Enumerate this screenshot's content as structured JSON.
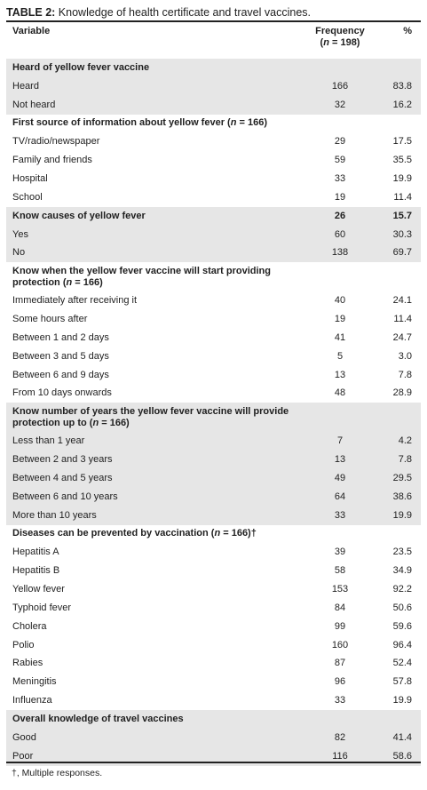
{
  "title": {
    "prefix": "TABLE 2:",
    "text": " Knowledge of health certificate and travel vaccines."
  },
  "header": {
    "variable": "Variable",
    "frequency": "Frequency",
    "frequency_n": "(n = 198)",
    "percent": "%"
  },
  "rows": [
    {
      "label": "Heard of yellow fever vaccine",
      "freq": "",
      "pct": "",
      "section": true,
      "shade": true
    },
    {
      "label": "Heard",
      "freq": "166",
      "pct": "83.8",
      "shade": true
    },
    {
      "label": "Not heard",
      "freq": "32",
      "pct": "16.2",
      "shade": true
    },
    {
      "label": "First source of information about yellow fever (n = 166)",
      "freq": "",
      "pct": "",
      "section": true
    },
    {
      "label": "TV/radio/newspaper",
      "freq": "29",
      "pct": "17.5"
    },
    {
      "label": "Family and friends",
      "freq": "59",
      "pct": "35.5"
    },
    {
      "label": "Hospital",
      "freq": "33",
      "pct": "19.9"
    },
    {
      "label": "School",
      "freq": "19",
      "pct": "11.4"
    },
    {
      "label": "Know causes of yellow fever",
      "freq": "26",
      "pct": "15.7",
      "section": true,
      "shade": true
    },
    {
      "label": "Yes",
      "freq": "60",
      "pct": "30.3",
      "shade": true
    },
    {
      "label": "No",
      "freq": "138",
      "pct": "69.7",
      "shade": true
    },
    {
      "label": "Know when the yellow fever vaccine will start providing protection (n = 166)",
      "freq": "",
      "pct": "",
      "section": true,
      "tall": true
    },
    {
      "label": "Immediately after receiving it",
      "freq": "40",
      "pct": "24.1"
    },
    {
      "label": "Some hours after",
      "freq": "19",
      "pct": "11.4"
    },
    {
      "label": "Between 1 and 2 days",
      "freq": "41",
      "pct": "24.7"
    },
    {
      "label": "Between 3 and 5 days",
      "freq": "5",
      "pct": "3.0"
    },
    {
      "label": "Between 6 and 9 days",
      "freq": "13",
      "pct": "7.8"
    },
    {
      "label": "From 10 days onwards",
      "freq": "48",
      "pct": "28.9"
    },
    {
      "label": "Know number of years the yellow fever vaccine will provide protection up to (n = 166)",
      "freq": "",
      "pct": "",
      "section": true,
      "shade": true,
      "tall": true
    },
    {
      "label": "Less than 1 year",
      "freq": "7",
      "pct": "4.2",
      "shade": true
    },
    {
      "label": "Between 2 and 3 years",
      "freq": "13",
      "pct": "7.8",
      "shade": true
    },
    {
      "label": "Between 4 and 5 years",
      "freq": "49",
      "pct": "29.5",
      "shade": true
    },
    {
      "label": "Between 6 and 10 years",
      "freq": "64",
      "pct": "38.6",
      "shade": true
    },
    {
      "label": "More than 10 years",
      "freq": "33",
      "pct": "19.9",
      "shade": true
    },
    {
      "label": "Diseases can be prevented by vaccination (n = 166)†",
      "freq": "",
      "pct": "",
      "section": true
    },
    {
      "label": "Hepatitis A",
      "freq": "39",
      "pct": "23.5"
    },
    {
      "label": "Hepatitis B",
      "freq": "58",
      "pct": "34.9"
    },
    {
      "label": "Yellow fever",
      "freq": "153",
      "pct": "92.2"
    },
    {
      "label": "Typhoid fever",
      "freq": "84",
      "pct": "50.6"
    },
    {
      "label": "Cholera",
      "freq": "99",
      "pct": "59.6"
    },
    {
      "label": "Polio",
      "freq": "160",
      "pct": "96.4"
    },
    {
      "label": "Rabies",
      "freq": "87",
      "pct": "52.4"
    },
    {
      "label": "Meningitis",
      "freq": "96",
      "pct": "57.8"
    },
    {
      "label": "Influenza",
      "freq": "33",
      "pct": "19.9"
    },
    {
      "label": "Overall knowledge of travel vaccines",
      "freq": "",
      "pct": "",
      "section": true,
      "shade": true
    },
    {
      "label": "Good",
      "freq": "82",
      "pct": "41.4",
      "shade": true
    },
    {
      "label": "Poor",
      "freq": "116",
      "pct": "58.6",
      "shade": true
    }
  ],
  "footnote": "†, Multiple responses."
}
